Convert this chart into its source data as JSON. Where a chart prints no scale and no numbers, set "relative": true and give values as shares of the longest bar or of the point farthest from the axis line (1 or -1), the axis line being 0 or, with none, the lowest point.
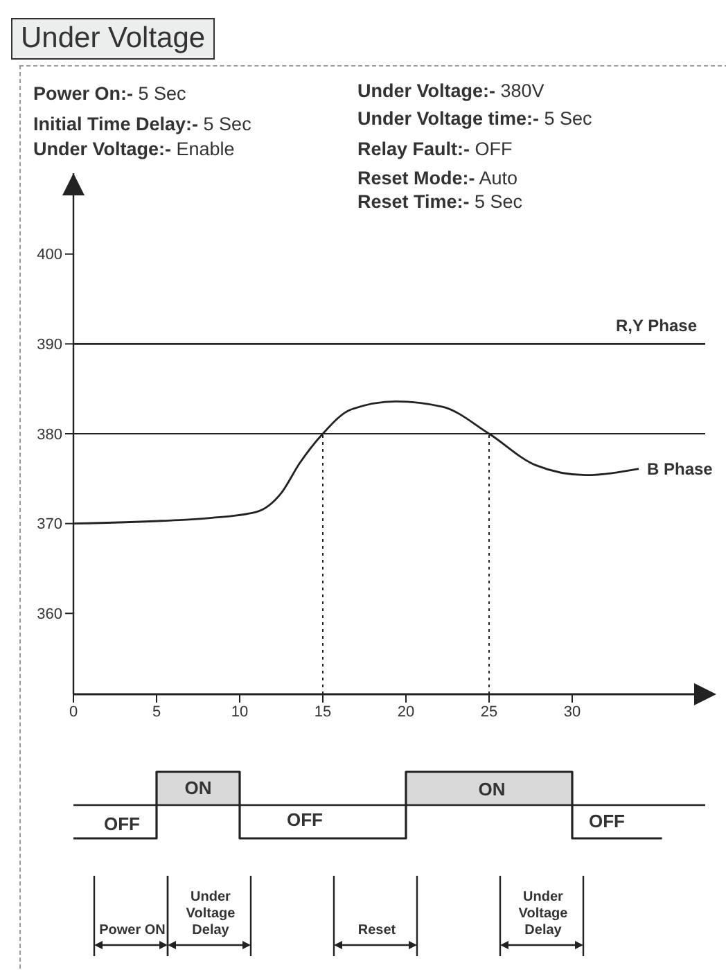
{
  "chart_data": [
    {
      "type": "line",
      "title": "Under Voltage",
      "annotations": [
        "Power On:- 5 Sec",
        "Initial Time Delay:- 5 Sec",
        "Under Voltage:- Enable",
        "Under Voltage:- 380V",
        "Under Voltage time:- 5 Sec",
        "Relay Fault:- OFF",
        "Reset Mode:- Auto",
        "Reset Time:- 5 Sec"
      ],
      "xlim": [
        0,
        38
      ],
      "xticks": [
        0,
        5,
        10,
        15,
        20,
        25,
        30
      ],
      "ylim": [
        351,
        409
      ],
      "yticks": [
        360,
        370,
        380,
        390,
        400
      ],
      "marker": "none",
      "line_style": "solid",
      "series": [
        {
          "name": "R,Y Phase",
          "color": "#222222",
          "x": [
            0,
            38
          ],
          "values": [
            390,
            390
          ]
        },
        {
          "name": "B Phase",
          "color": "#222222",
          "x": [
            0,
            5.3,
            8.1,
            11,
            12.5,
            13.6,
            15,
            16.7,
            19.4,
            22.2,
            25,
            27.8,
            30.8,
            34
          ],
          "values": [
            370,
            370.3,
            370.6,
            371.3,
            373.4,
            376.7,
            380,
            382.7,
            383.6,
            383,
            380,
            376.5,
            375.4,
            376.1
          ]
        }
      ],
      "ref_lines": [
        {
          "axis": "y",
          "value": 380,
          "color": "#222222"
        },
        {
          "axis": "x",
          "value": 15,
          "color": "#222222",
          "line_style": "dotted"
        },
        {
          "axis": "x",
          "value": 25,
          "color": "#222222",
          "line_style": "dotted"
        }
      ]
    },
    {
      "type": "step",
      "relative": true,
      "color": "#222222",
      "x": [
        0,
        5,
        10,
        20,
        30,
        35.4
      ],
      "values": [
        -1,
        1,
        -1,
        1,
        -1,
        -1
      ],
      "xlim": [
        0,
        38
      ],
      "tick_labels": false,
      "annotations": [
        "OFF",
        "ON",
        "OFF",
        "ON",
        "OFF",
        "Power ON",
        "Under Voltage Delay",
        "Reset",
        "Under Voltage Delay"
      ],
      "bands": [
        {
          "axis": "x",
          "from": 5,
          "to": 10,
          "color": "#d9d9d9"
        },
        {
          "axis": "x",
          "from": 20,
          "to": 30,
          "color": "#d9d9d9"
        }
      ]
    }
  ]
}
